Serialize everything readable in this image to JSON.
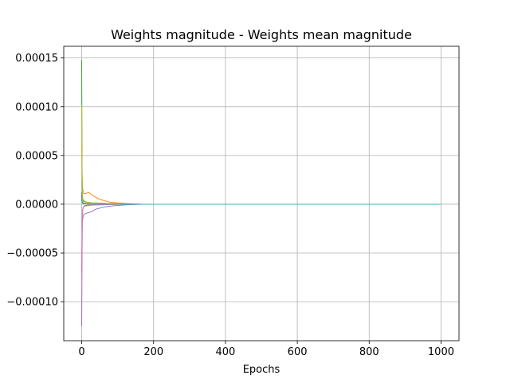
{
  "chart_data": {
    "type": "line",
    "title": "Weights magnitude - Weights mean magnitude",
    "xlabel": "Epochs",
    "ylabel": "",
    "xlim": [
      -50,
      1050
    ],
    "ylim": [
      -0.00014,
      0.000162
    ],
    "xticks": [
      0,
      200,
      400,
      600,
      800,
      1000
    ],
    "xtick_labels": [
      "0",
      "200",
      "400",
      "600",
      "800",
      "1000"
    ],
    "yticks": [
      -0.0001,
      -5e-05,
      0,
      5e-05,
      0.0001,
      0.00015
    ],
    "ytick_labels": [
      "−0.00010",
      "−0.00005",
      "0.00000",
      "0.00005",
      "0.00010",
      "0.00015"
    ],
    "grid": true,
    "series": [
      {
        "color": "#1f77b4",
        "x": [
          0,
          1,
          2,
          4,
          8,
          15,
          30,
          60,
          100,
          150,
          200,
          1000
        ],
        "y": [
          1.2e-05,
          4e-06,
          2e-06,
          1.5e-06,
          1e-06,
          8e-07,
          5e-07,
          3e-07,
          1e-07,
          5e-08,
          0,
          0
        ]
      },
      {
        "color": "#ff7f0e",
        "x": [
          0,
          1,
          2,
          4,
          6,
          10,
          20,
          30,
          50,
          80,
          120,
          170,
          1000
        ],
        "y": [
          6e-05,
          3.5e-05,
          1.8e-05,
          1.3e-05,
          1.1e-05,
          1.1e-05,
          1.2e-05,
          9e-06,
          5e-06,
          2e-06,
          8e-07,
          0,
          0
        ]
      },
      {
        "color": "#2ca02c",
        "x": [
          0,
          1,
          2,
          4,
          8,
          15,
          30,
          60,
          100,
          160,
          1000
        ],
        "y": [
          0.000148,
          4e-05,
          8e-06,
          4e-06,
          3e-06,
          2e-06,
          1.5e-06,
          1e-06,
          5e-07,
          0,
          0
        ]
      },
      {
        "color": "#d62728",
        "x": [
          0,
          1,
          2,
          4,
          8,
          15,
          30,
          60,
          100,
          160,
          1000
        ],
        "y": [
          -7e-05,
          -3e-05,
          -8e-06,
          -3e-06,
          -1.5e-06,
          -1e-06,
          -8e-07,
          -5e-07,
          -2e-07,
          0,
          0
        ]
      },
      {
        "color": "#9467bd",
        "x": [
          0,
          1,
          2,
          4,
          8,
          15,
          25,
          40,
          60,
          90,
          130,
          180,
          1000
        ],
        "y": [
          -0.000125,
          -5e-05,
          -1.8e-05,
          -1.2e-05,
          -1e-05,
          -9e-06,
          -8e-06,
          -5e-06,
          -3e-06,
          -1.5e-06,
          -5e-07,
          0,
          0
        ]
      },
      {
        "color": "#8c564b",
        "x": [
          0,
          1,
          2,
          4,
          8,
          15,
          30,
          60,
          100,
          160,
          1000
        ],
        "y": [
          8e-06,
          3e-06,
          1.5e-06,
          1e-06,
          8e-07,
          5e-07,
          3e-07,
          2e-07,
          1e-07,
          0,
          0
        ]
      },
      {
        "color": "#e377c2",
        "x": [
          0,
          1,
          2,
          4,
          8,
          15,
          30,
          60,
          100,
          160,
          1000
        ],
        "y": [
          -8.5e-05,
          -2.5e-05,
          -6e-06,
          -3e-06,
          -2e-06,
          -1.5e-06,
          -1e-06,
          -6e-07,
          -2e-07,
          0,
          0
        ]
      },
      {
        "color": "#7f7f7f",
        "x": [
          0,
          1,
          2,
          4,
          8,
          15,
          30,
          60,
          100,
          160,
          1000
        ],
        "y": [
          5e-06,
          2e-06,
          1e-06,
          8e-07,
          5e-07,
          3e-07,
          2e-07,
          1e-07,
          5e-08,
          0,
          0
        ]
      },
      {
        "color": "#bcbd22",
        "x": [
          0,
          1,
          2,
          4,
          8,
          15,
          30,
          60,
          100,
          160,
          1000
        ],
        "y": [
          0.000101,
          3e-05,
          6e-06,
          3e-06,
          2.5e-06,
          2e-06,
          1.5e-06,
          1e-06,
          4e-07,
          0,
          0
        ]
      },
      {
        "color": "#17becf",
        "x": [
          0,
          1,
          2,
          4,
          8,
          15,
          30,
          60,
          100,
          160,
          1000
        ],
        "y": [
          4e-06,
          2e-06,
          1e-06,
          6e-07,
          4e-07,
          3e-07,
          2e-07,
          1e-07,
          5e-08,
          0,
          0
        ]
      }
    ]
  }
}
